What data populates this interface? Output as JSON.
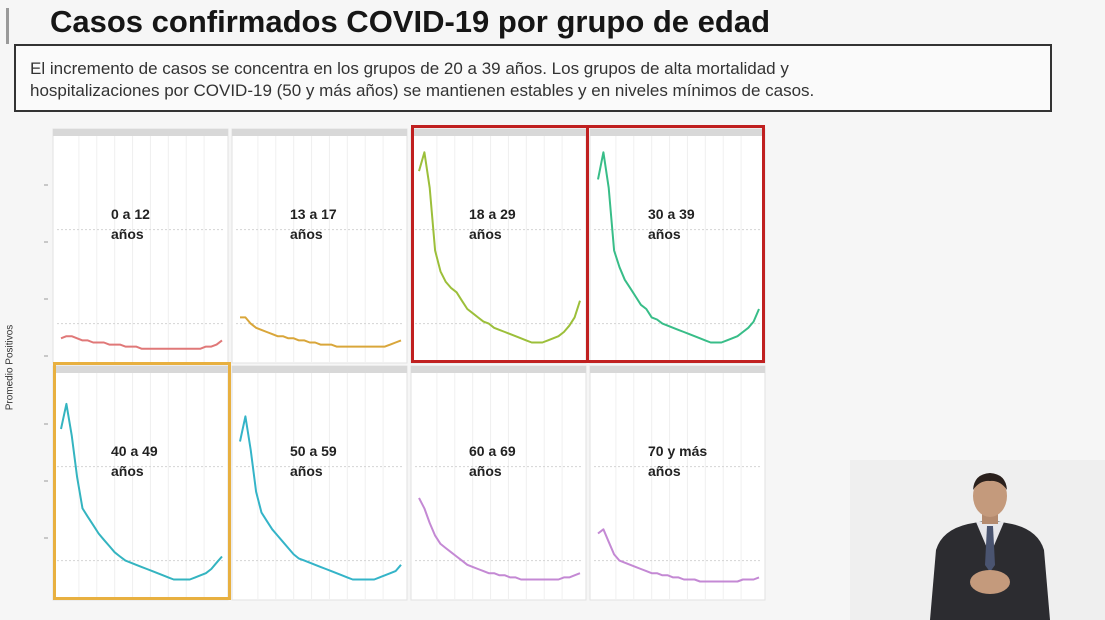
{
  "header": {
    "title": "Casos confirmados COVID-19 por grupo de edad",
    "subtitle_line1": "El incremento de casos se concentra en los grupos de 20 a 39 años. Los grupos de alta mortalidad y",
    "subtitle_line2": "hospitalizaciones por COVID-19 (50 y más años) se mantienen estables y en niveles mínimos de casos."
  },
  "chart_data": {
    "type": "line",
    "ylabel": "Promedio Positivos",
    "ylim": [
      0,
      100
    ],
    "panels": [
      {
        "label_line1": "0 a 12",
        "label_line2": "años",
        "color": "#e07878",
        "highlight": "none",
        "values": [
          8,
          9,
          9,
          8,
          7,
          7,
          6,
          6,
          6,
          5,
          5,
          5,
          4,
          4,
          4,
          3,
          3,
          3,
          3,
          3,
          3,
          3,
          3,
          3,
          3,
          3,
          3,
          4,
          4,
          5,
          7
        ]
      },
      {
        "label_line1": "13 a 17",
        "label_line2": "años",
        "color": "#d9a63a",
        "highlight": "none",
        "values": [
          18,
          18,
          15,
          13,
          12,
          11,
          10,
          9,
          9,
          8,
          8,
          7,
          7,
          6,
          6,
          5,
          5,
          5,
          4,
          4,
          4,
          4,
          4,
          4,
          4,
          4,
          4,
          4,
          5,
          6,
          7
        ]
      },
      {
        "label_line1": "18 a 29",
        "label_line2": "años",
        "color": "#9cbf3a",
        "highlight": "red",
        "values": [
          88,
          97,
          80,
          50,
          40,
          35,
          32,
          30,
          26,
          22,
          20,
          18,
          16,
          15,
          13,
          12,
          11,
          10,
          9,
          8,
          7,
          6,
          6,
          6,
          7,
          8,
          9,
          11,
          14,
          18,
          26
        ]
      },
      {
        "label_line1": "30 a 39",
        "label_line2": "años",
        "color": "#38bd88",
        "highlight": "red",
        "values": [
          84,
          97,
          80,
          50,
          42,
          36,
          32,
          28,
          24,
          22,
          18,
          17,
          15,
          14,
          13,
          12,
          11,
          10,
          9,
          8,
          7,
          6,
          6,
          6,
          7,
          8,
          9,
          11,
          13,
          16,
          22
        ]
      },
      {
        "label_line1": "40 a 49",
        "label_line2": "años",
        "color": "#34b4c0",
        "highlight": "yellow",
        "values": [
          78,
          90,
          75,
          55,
          40,
          36,
          32,
          28,
          25,
          22,
          19,
          17,
          15,
          14,
          13,
          12,
          11,
          10,
          9,
          8,
          7,
          6,
          6,
          6,
          6,
          7,
          8,
          9,
          11,
          14,
          17
        ]
      },
      {
        "label_line1": "50 a 59",
        "label_line2": "años",
        "color": "#34b4c8",
        "highlight": "none",
        "values": [
          72,
          84,
          68,
          48,
          38,
          34,
          30,
          27,
          24,
          21,
          18,
          16,
          15,
          14,
          13,
          12,
          11,
          10,
          9,
          8,
          7,
          6,
          6,
          6,
          6,
          6,
          7,
          8,
          9,
          10,
          13
        ]
      },
      {
        "label_line1": "60 a 69",
        "label_line2": "años",
        "color": "#c489d4",
        "highlight": "none",
        "values": [
          45,
          40,
          33,
          27,
          23,
          21,
          19,
          17,
          15,
          13,
          12,
          11,
          10,
          9,
          9,
          8,
          8,
          7,
          7,
          6,
          6,
          6,
          6,
          6,
          6,
          6,
          6,
          7,
          7,
          8,
          9
        ]
      },
      {
        "label_line1": "70 y más",
        "label_line2": "años",
        "color": "#c489d4",
        "highlight": "none",
        "values": [
          28,
          30,
          24,
          18,
          15,
          14,
          13,
          12,
          11,
          10,
          9,
          9,
          8,
          8,
          7,
          7,
          6,
          6,
          6,
          5,
          5,
          5,
          5,
          5,
          5,
          5,
          5,
          6,
          6,
          6,
          7
        ]
      }
    ]
  }
}
